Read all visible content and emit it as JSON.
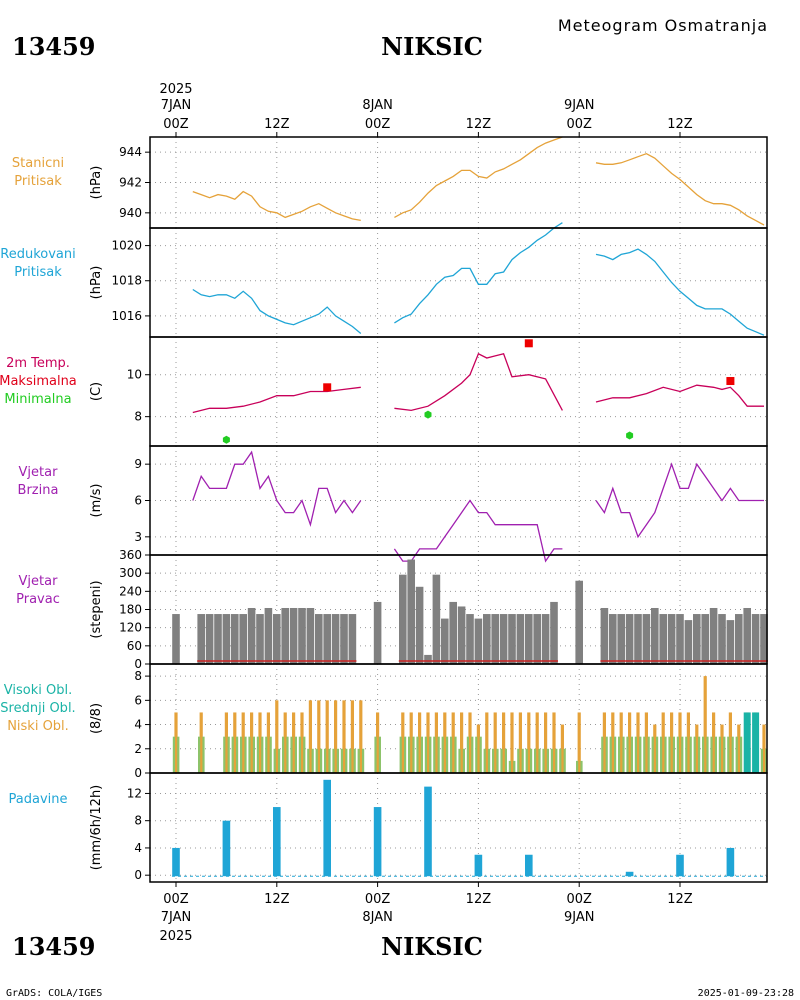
{
  "header": {
    "station_id": "13459",
    "station_name": "NIKSIC",
    "product_title": "Meteogram Osmatranja"
  },
  "time_axis_top": {
    "year": "2025",
    "labels": [
      {
        "date": "7JAN",
        "hour": "00Z"
      },
      {
        "date": "",
        "hour": "12Z"
      },
      {
        "date": "8JAN",
        "hour": "00Z"
      },
      {
        "date": "",
        "hour": "12Z"
      },
      {
        "date": "9JAN",
        "hour": "00Z"
      },
      {
        "date": "",
        "hour": "12Z"
      }
    ]
  },
  "time_axis_bottom": {
    "year": "2025",
    "labels": [
      {
        "hour": "00Z",
        "date": "7JAN"
      },
      {
        "hour": "12Z",
        "date": ""
      },
      {
        "hour": "00Z",
        "date": "8JAN"
      },
      {
        "hour": "12Z",
        "date": ""
      },
      {
        "hour": "00Z",
        "date": "9JAN"
      },
      {
        "hour": "12Z",
        "date": ""
      }
    ]
  },
  "footer": {
    "station_id": "13459",
    "station_name": "NIKSIC",
    "credit": "GrADS: COLA/IGES",
    "timestamp": "2025-01-09-23:28"
  },
  "panels": [
    {
      "label_lines": [
        "Stanicni",
        "Pritisak"
      ],
      "label_colors": [
        "#e5a23a",
        "#e5a23a"
      ],
      "unit": "(hPa)"
    },
    {
      "label_lines": [
        "Redukovani",
        "Pritisak"
      ],
      "label_colors": [
        "#1fa5d6",
        "#1fa5d6"
      ],
      "unit": "(hPa)"
    },
    {
      "label_lines": [
        "2m Temp.",
        "Maksimalna",
        "Minimalna"
      ],
      "label_colors": [
        "#c8005a",
        "#e0001a",
        "#22cc22"
      ],
      "unit": "(C)"
    },
    {
      "label_lines": [
        "Vjetar",
        "Brzina"
      ],
      "label_colors": [
        "#a020b0",
        "#a020b0"
      ],
      "unit": "(m/s)"
    },
    {
      "label_lines": [
        "Vjetar",
        "Pravac"
      ],
      "label_colors": [
        "#a020b0",
        "#a020b0"
      ],
      "unit": "(stepeni)"
    },
    {
      "label_lines": [
        "Visoki Obl.",
        "Srednji Obl.",
        "Niski Obl."
      ],
      "label_colors": [
        "#1ab3a6",
        "#1ab3a6",
        "#e5a23a"
      ],
      "unit": "(8/8)"
    },
    {
      "label_lines": [
        "Padavine"
      ],
      "label_colors": [
        "#1fa5d6"
      ],
      "unit": "(mm/6h/12h)"
    }
  ],
  "chart_data": [
    {
      "type": "line",
      "name": "station_pressure",
      "color": "#e5a23a",
      "x_unit": "hours since 7JAN 00Z",
      "ylim": [
        939,
        945
      ],
      "yticks": [
        940,
        942,
        944
      ],
      "segments": [
        {
          "x": [
            2,
            3,
            4,
            5,
            6,
            7,
            8,
            9,
            10,
            11,
            12,
            13,
            14,
            15,
            16,
            17,
            18,
            19,
            20,
            21,
            22
          ],
          "y": [
            941.4,
            941.2,
            941.0,
            941.2,
            941.1,
            940.9,
            941.4,
            941.1,
            940.4,
            940.1,
            940.0,
            939.7,
            939.9,
            940.1,
            940.4,
            940.6,
            940.3,
            940.0,
            939.8,
            939.6,
            939.5
          ]
        },
        {
          "x": [
            26,
            27,
            28,
            29,
            30,
            31,
            32,
            33,
            34,
            35,
            36,
            37,
            38,
            39,
            40,
            41,
            42,
            43,
            44,
            45,
            46
          ],
          "y": [
            939.7,
            940.0,
            940.2,
            940.7,
            941.3,
            941.8,
            942.1,
            942.4,
            942.8,
            942.8,
            942.4,
            942.3,
            942.7,
            942.9,
            943.2,
            943.5,
            943.9,
            944.3,
            944.6,
            944.8,
            945.0
          ]
        },
        {
          "x": [
            50,
            51,
            52,
            53,
            54,
            55,
            56,
            57,
            58,
            59,
            60,
            61,
            62,
            63,
            64,
            65,
            66,
            67,
            68,
            69,
            70
          ],
          "y": [
            943.3,
            943.2,
            943.2,
            943.3,
            943.5,
            943.7,
            943.9,
            943.6,
            943.1,
            942.6,
            942.2,
            941.7,
            941.2,
            940.8,
            940.6,
            940.6,
            940.5,
            940.2,
            939.8,
            939.5,
            939.2
          ]
        }
      ]
    },
    {
      "type": "line",
      "name": "reduced_pressure",
      "color": "#1fa5d6",
      "x_unit": "hours since 7JAN 00Z",
      "ylim": [
        1014.8,
        1021.0
      ],
      "yticks": [
        1016,
        1018,
        1020
      ],
      "segments": [
        {
          "x": [
            2,
            3,
            4,
            5,
            6,
            7,
            8,
            9,
            10,
            11,
            12,
            13,
            14,
            15,
            16,
            17,
            18,
            19,
            20,
            21,
            22
          ],
          "y": [
            1017.5,
            1017.2,
            1017.1,
            1017.2,
            1017.2,
            1017.0,
            1017.4,
            1017.0,
            1016.3,
            1016.0,
            1015.8,
            1015.6,
            1015.5,
            1015.7,
            1015.9,
            1016.1,
            1016.5,
            1016.0,
            1015.7,
            1015.4,
            1015.0
          ]
        },
        {
          "x": [
            26,
            27,
            28,
            29,
            30,
            31,
            32,
            33,
            34,
            35,
            36,
            37,
            38,
            39,
            40,
            41,
            42,
            43,
            44,
            45,
            46
          ],
          "y": [
            1015.6,
            1015.9,
            1016.1,
            1016.7,
            1017.2,
            1017.8,
            1018.2,
            1018.3,
            1018.7,
            1018.7,
            1017.8,
            1017.8,
            1018.4,
            1018.5,
            1019.2,
            1019.6,
            1019.9,
            1020.3,
            1020.6,
            1021.0,
            1021.3
          ]
        },
        {
          "x": [
            50,
            51,
            52,
            53,
            54,
            55,
            56,
            57,
            58,
            59,
            60,
            61,
            62,
            63,
            64,
            65,
            66,
            67,
            68,
            69,
            70
          ],
          "y": [
            1019.5,
            1019.4,
            1019.2,
            1019.5,
            1019.6,
            1019.8,
            1019.5,
            1019.1,
            1018.5,
            1017.9,
            1017.4,
            1017.0,
            1016.6,
            1016.4,
            1016.4,
            1016.4,
            1016.1,
            1015.7,
            1015.3,
            1015.1,
            1014.9
          ]
        }
      ]
    },
    {
      "type": "line",
      "name": "temperature_2m",
      "color": "#c8005a",
      "x_unit": "hours since 7JAN 00Z",
      "ylim": [
        6.6,
        11.8
      ],
      "yticks": [
        8,
        10
      ],
      "segments": [
        {
          "x": [
            2,
            4,
            6,
            8,
            10,
            12,
            14,
            16,
            18,
            20,
            22
          ],
          "y": [
            8.2,
            8.4,
            8.4,
            8.5,
            8.7,
            9.0,
            9.0,
            9.2,
            9.2,
            9.3,
            9.4
          ]
        },
        {
          "x": [
            26,
            28,
            30,
            32,
            34,
            35,
            36,
            37,
            38,
            39,
            40,
            42,
            44,
            46
          ],
          "y": [
            8.4,
            8.3,
            8.5,
            9.0,
            9.6,
            10.0,
            11.0,
            10.8,
            10.9,
            11.0,
            9.9,
            10.0,
            9.8,
            8.3
          ]
        },
        {
          "x": [
            50,
            52,
            54,
            56,
            58,
            60,
            62,
            64,
            65,
            66,
            67,
            68,
            70
          ],
          "y": [
            8.7,
            8.9,
            8.9,
            9.1,
            9.4,
            9.2,
            9.5,
            9.4,
            9.3,
            9.4,
            9.0,
            8.5,
            8.5
          ]
        }
      ],
      "maxima": [
        {
          "x": 18,
          "y": 9.4
        },
        {
          "x": 42,
          "y": 11.5
        },
        {
          "x": 66,
          "y": 9.7
        }
      ],
      "minima": [
        {
          "x": 6,
          "y": 6.9
        },
        {
          "x": 30,
          "y": 8.1
        },
        {
          "x": 54,
          "y": 7.1
        }
      ]
    },
    {
      "type": "line",
      "name": "wind_speed",
      "color": "#a020b0",
      "x_unit": "hours since 7JAN 00Z",
      "ylim": [
        1.5,
        10.5
      ],
      "yticks": [
        3,
        6,
        9
      ],
      "segments": [
        {
          "x": [
            2,
            3,
            4,
            5,
            6,
            7,
            8,
            9,
            10,
            11,
            12,
            13,
            14,
            15,
            16,
            17,
            18,
            19,
            20,
            21,
            22
          ],
          "y": [
            6,
            8,
            7,
            7,
            7,
            9,
            9,
            10,
            7,
            8,
            6,
            5,
            5,
            6,
            4,
            7,
            7,
            5,
            6,
            5,
            6
          ]
        },
        {
          "x": [
            26,
            27,
            28,
            29,
            30,
            31,
            32,
            33,
            34,
            35,
            36,
            37,
            38,
            39,
            40,
            41,
            42,
            43,
            44,
            45,
            46
          ],
          "y": [
            2,
            1,
            1,
            2,
            2,
            2,
            3,
            4,
            5,
            6,
            5,
            5,
            4,
            4,
            4,
            4,
            4,
            4,
            1,
            2,
            2
          ]
        },
        {
          "x": [
            50,
            51,
            52,
            53,
            54,
            55,
            56,
            57,
            58,
            59,
            60,
            61,
            62,
            63,
            64,
            65,
            66,
            67,
            68,
            69,
            70
          ],
          "y": [
            6,
            5,
            7,
            5,
            5,
            3,
            4,
            5,
            7,
            9,
            7,
            7,
            9,
            8,
            7,
            6,
            7,
            6,
            6,
            6,
            6
          ]
        }
      ]
    },
    {
      "type": "bar",
      "name": "wind_direction",
      "color": "#808080",
      "x_unit": "hours since 7JAN 00Z",
      "ylim": [
        0,
        360
      ],
      "yticks": [
        0,
        60,
        120,
        180,
        240,
        300,
        360
      ],
      "x": [
        0,
        3,
        4,
        5,
        6,
        7,
        8,
        9,
        10,
        11,
        12,
        13,
        14,
        15,
        16,
        17,
        18,
        19,
        20,
        21,
        24,
        27,
        28,
        29,
        30,
        31,
        32,
        33,
        34,
        35,
        36,
        37,
        38,
        39,
        40,
        41,
        42,
        43,
        44,
        45,
        48,
        51,
        52,
        53,
        54,
        55,
        56,
        57,
        58,
        59,
        60,
        61,
        62,
        63,
        64,
        65,
        66,
        67,
        68,
        69,
        70
      ],
      "values": [
        165,
        165,
        165,
        165,
        165,
        165,
        165,
        185,
        165,
        185,
        165,
        185,
        185,
        185,
        185,
        165,
        165,
        165,
        165,
        165,
        205,
        295,
        345,
        255,
        30,
        295,
        150,
        205,
        190,
        165,
        150,
        165,
        165,
        165,
        165,
        165,
        165,
        165,
        165,
        205,
        275,
        185,
        165,
        165,
        165,
        165,
        165,
        185,
        165,
        165,
        165,
        145,
        165,
        165,
        185,
        165,
        145,
        165,
        185,
        165,
        165
      ]
    },
    {
      "type": "bar",
      "name": "cloud_cover",
      "x_unit": "hours since 7JAN 00Z",
      "ylim": [
        0,
        9
      ],
      "yticks": [
        0,
        2,
        4,
        6,
        8
      ],
      "series": [
        {
          "name": "Niski Obl.",
          "color": "#e5a23a",
          "x": [
            0,
            3,
            6,
            7,
            8,
            9,
            10,
            11,
            12,
            13,
            14,
            15,
            16,
            17,
            18,
            19,
            20,
            21,
            22,
            24,
            27,
            28,
            29,
            30,
            31,
            32,
            33,
            34,
            35,
            36,
            37,
            38,
            39,
            40,
            41,
            42,
            43,
            44,
            45,
            46,
            48,
            51,
            52,
            53,
            54,
            55,
            56,
            57,
            58,
            59,
            60,
            61,
            62,
            63,
            64,
            65,
            66,
            67,
            68,
            69,
            70
          ],
          "values": [
            5,
            5,
            5,
            5,
            5,
            5,
            5,
            5,
            6,
            5,
            5,
            5,
            6,
            6,
            6,
            6,
            6,
            6,
            6,
            5,
            5,
            5,
            5,
            5,
            5,
            5,
            5,
            5,
            5,
            4,
            5,
            5,
            5,
            5,
            5,
            5,
            5,
            5,
            5,
            4,
            5,
            5,
            5,
            5,
            5,
            5,
            5,
            4,
            5,
            5,
            5,
            5,
            4,
            8,
            5,
            4,
            5,
            4,
            5,
            5,
            4
          ]
        },
        {
          "name": "Srednji Obl.",
          "color": "#8dc36a",
          "x": [
            0,
            3,
            6,
            7,
            8,
            9,
            10,
            11,
            12,
            13,
            14,
            15,
            16,
            17,
            18,
            19,
            20,
            21,
            22,
            24,
            27,
            28,
            29,
            30,
            31,
            32,
            33,
            34,
            35,
            36,
            37,
            38,
            39,
            40,
            41,
            42,
            43,
            44,
            45,
            46,
            48,
            51,
            52,
            53,
            54,
            55,
            56,
            57,
            58,
            59,
            60,
            61,
            62,
            63,
            64,
            65,
            66,
            67,
            68,
            69,
            70
          ],
          "values": [
            3,
            3,
            3,
            3,
            3,
            3,
            3,
            3,
            2,
            3,
            3,
            3,
            2,
            2,
            2,
            2,
            2,
            2,
            2,
            3,
            3,
            3,
            3,
            3,
            3,
            3,
            3,
            2,
            3,
            3,
            2,
            2,
            2,
            1,
            2,
            2,
            2,
            2,
            2,
            2,
            1,
            3,
            3,
            3,
            3,
            3,
            3,
            3,
            3,
            3,
            3,
            3,
            3,
            3,
            3,
            3,
            3,
            3,
            2,
            2,
            2
          ]
        },
        {
          "name": "Visoki Obl.",
          "color": "#1ab3a6",
          "x": [
            68,
            69
          ],
          "values": [
            5,
            5
          ]
        }
      ]
    },
    {
      "type": "bar",
      "name": "precipitation",
      "color": "#1fa5d6",
      "x_unit": "hours since 7JAN 00Z",
      "ylim": [
        -1,
        15
      ],
      "yticks": [
        0,
        4,
        8,
        12
      ],
      "x": [
        0,
        6,
        12,
        18,
        24,
        30,
        36,
        42,
        54,
        60,
        66
      ],
      "values": [
        4,
        8,
        10,
        14,
        10,
        13,
        3,
        3,
        0.5,
        3,
        4
      ]
    }
  ]
}
